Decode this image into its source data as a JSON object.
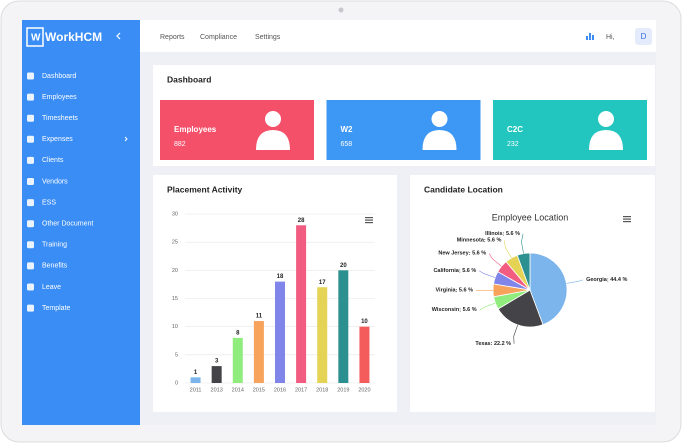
{
  "sidebar": {
    "brand": "WorkHCM",
    "menu": [
      "Dashboard",
      "Employees",
      "Timesheets",
      "Expenses",
      "Clients",
      "Vendors",
      "ESS",
      "Other Document",
      "Training",
      "Benefits",
      "Leave",
      "Template"
    ]
  },
  "topbar": {
    "links": [
      "Reports",
      "Compliance",
      "Settings"
    ],
    "greeting": "Hi,",
    "avatar": "D"
  },
  "page_title": "Dashboard",
  "cards": [
    {
      "label": "Employees",
      "value": 882
    },
    {
      "label": "W2",
      "value": 658
    },
    {
      "label": "C2C",
      "value": 232
    }
  ],
  "panels": [
    "Placement Activity",
    "Candidate Location"
  ],
  "chart_data": [
    {
      "type": "bar",
      "categories": [
        "2011",
        "2013",
        "2014",
        "2015",
        "2016",
        "2017",
        "2018",
        "2019",
        "2020"
      ],
      "values": [
        1,
        3,
        8,
        11,
        18,
        28,
        17,
        20,
        10
      ],
      "colors": [
        "#7cb5ec",
        "#434348",
        "#90ed7d",
        "#f7a35c",
        "#8085e9",
        "#f15c80",
        "#e4d354",
        "#2b908f",
        "#f45b5b"
      ],
      "ylim": [
        0,
        30
      ],
      "yticks": [
        0,
        5,
        10,
        15,
        20,
        25,
        30
      ],
      "grid": true
    },
    {
      "type": "pie",
      "title": "Employee Location",
      "categories": [
        "Georgia",
        "Texas",
        "Wisconsin",
        "Virginia",
        "California",
        "New Jersey",
        "Minnesota",
        "Illinois"
      ],
      "values": [
        44.4,
        22.2,
        5.6,
        5.6,
        5.6,
        5.6,
        5.6,
        5.6
      ],
      "value_labels": [
        "44.4 %",
        "22.2 %",
        "5.6 %",
        "5.6 %",
        "5.6 %",
        "5.6 %",
        "5.6 %",
        "5.6 %"
      ],
      "colors": [
        "#7cb5ec",
        "#434348",
        "#90ed7d",
        "#f7a35c",
        "#8085e9",
        "#f15c80",
        "#e4d354",
        "#2b908f"
      ]
    }
  ]
}
